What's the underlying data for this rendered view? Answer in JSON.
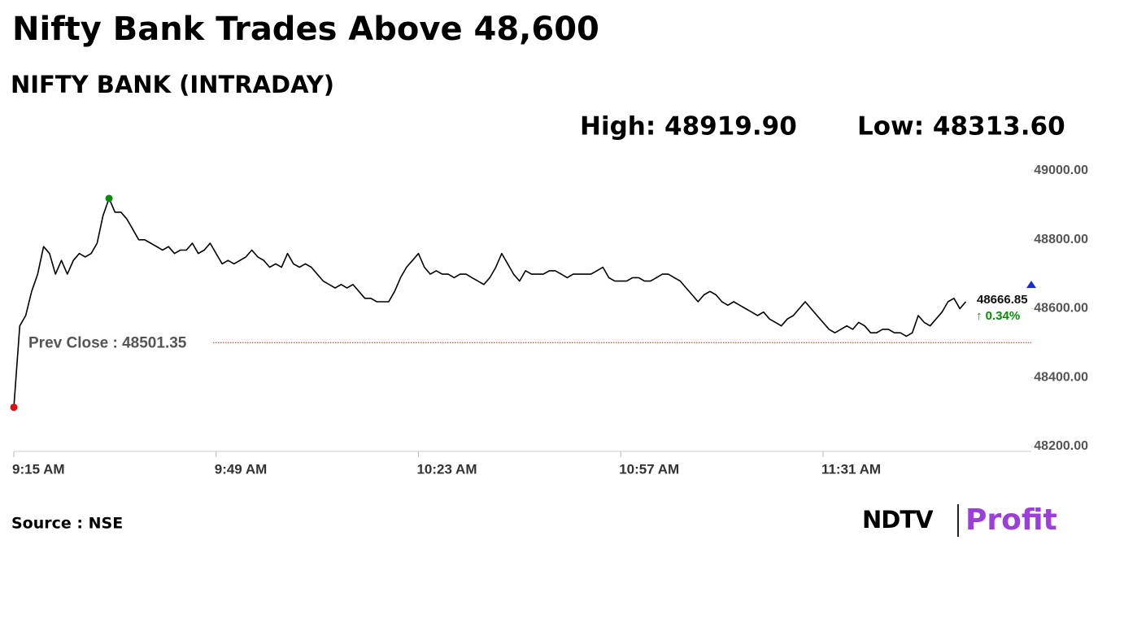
{
  "chart_data": {
    "type": "line",
    "title": "Nifty Bank Trades Above 48,600",
    "subtitle": "NIFTY BANK (INTRADAY)",
    "high_label": "High: 48919.90",
    "low_label": "Low: 48313.60",
    "prev_close": 48501.35,
    "prev_close_label": "Prev Close : 48501.35",
    "last_value": 48666.85,
    "change_label": "↑ 0.34%",
    "source": "Source : NSE",
    "logo": [
      "NDTV",
      "Profit"
    ],
    "xlim": [
      "9:15 AM",
      "12:06 PM"
    ],
    "xticks": [
      "9:15 AM",
      "9:49 AM",
      "10:23 AM",
      "10:57 AM",
      "11:31 AM"
    ],
    "ylim": [
      48200,
      49000
    ],
    "yticks": [
      {
        "value": 48200,
        "label": "48200.00"
      },
      {
        "value": 48400,
        "label": "48400.00"
      },
      {
        "value": 48600,
        "label": "48600.00"
      },
      {
        "value": 48800,
        "label": "48800.00"
      },
      {
        "value": 49000,
        "label": "49000.00"
      }
    ],
    "x": [
      "9:15 AM",
      "9:16 AM",
      "9:17 AM",
      "9:18 AM",
      "9:19 AM",
      "9:20 AM",
      "9:21 AM",
      "9:22 AM",
      "9:23 AM",
      "9:24 AM",
      "9:25 AM",
      "9:26 AM",
      "9:27 AM",
      "9:28 AM",
      "9:29 AM",
      "9:30 AM",
      "9:31 AM",
      "9:32 AM",
      "9:33 AM",
      "9:34 AM",
      "9:35 AM",
      "9:36 AM",
      "9:37 AM",
      "9:38 AM",
      "9:39 AM",
      "9:40 AM",
      "9:41 AM",
      "9:42 AM",
      "9:43 AM",
      "9:44 AM",
      "9:45 AM",
      "9:46 AM",
      "9:47 AM",
      "9:48 AM",
      "9:49 AM",
      "9:50 AM",
      "9:51 AM",
      "9:52 AM",
      "9:53 AM",
      "9:54 AM",
      "9:55 AM",
      "9:56 AM",
      "9:57 AM",
      "9:58 AM",
      "9:59 AM",
      "10:00 AM",
      "10:01 AM",
      "10:02 AM",
      "10:03 AM",
      "10:04 AM",
      "10:05 AM",
      "10:06 AM",
      "10:07 AM",
      "10:08 AM",
      "10:09 AM",
      "10:10 AM",
      "10:11 AM",
      "10:12 AM",
      "10:13 AM",
      "10:14 AM",
      "10:15 AM",
      "10:16 AM",
      "10:17 AM",
      "10:18 AM",
      "10:19 AM",
      "10:20 AM",
      "10:21 AM",
      "10:22 AM",
      "10:23 AM",
      "10:24 AM",
      "10:25 AM",
      "10:26 AM",
      "10:27 AM",
      "10:28 AM",
      "10:29 AM",
      "10:30 AM",
      "10:31 AM",
      "10:32 AM",
      "10:33 AM",
      "10:34 AM",
      "10:35 AM",
      "10:36 AM",
      "10:37 AM",
      "10:38 AM",
      "10:39 AM",
      "10:40 AM",
      "10:41 AM",
      "10:42 AM",
      "10:43 AM",
      "10:44 AM",
      "10:45 AM",
      "10:46 AM",
      "10:47 AM",
      "10:48 AM",
      "10:49 AM",
      "10:50 AM",
      "10:51 AM",
      "10:52 AM",
      "10:53 AM",
      "10:54 AM",
      "10:55 AM",
      "10:56 AM",
      "10:57 AM",
      "10:58 AM",
      "10:59 AM",
      "11:00 AM",
      "11:01 AM",
      "11:02 AM",
      "11:03 AM",
      "11:04 AM",
      "11:05 AM",
      "11:06 AM",
      "11:07 AM",
      "11:08 AM",
      "11:09 AM",
      "11:10 AM",
      "11:11 AM",
      "11:12 AM",
      "11:13 AM",
      "11:14 AM",
      "11:15 AM",
      "11:16 AM",
      "11:17 AM",
      "11:18 AM",
      "11:19 AM",
      "11:20 AM",
      "11:21 AM",
      "11:22 AM",
      "11:23 AM",
      "11:24 AM",
      "11:25 AM",
      "11:26 AM",
      "11:27 AM",
      "11:28 AM",
      "11:29 AM",
      "11:30 AM",
      "11:31 AM",
      "11:32 AM",
      "11:33 AM",
      "11:34 AM",
      "11:35 AM",
      "11:36 AM",
      "11:37 AM",
      "11:38 AM",
      "11:39 AM",
      "11:40 AM",
      "11:41 AM",
      "11:42 AM",
      "11:43 AM",
      "11:44 AM",
      "11:45 AM",
      "11:46 AM",
      "11:47 AM",
      "11:48 AM",
      "11:49 AM",
      "11:50 AM",
      "11:51 AM",
      "11:52 AM",
      "11:53 AM",
      "11:54 AM",
      "11:55 AM"
    ],
    "series": [
      {
        "name": "NIFTY BANK",
        "color": "#000000",
        "values": [
          48313.6,
          48550,
          48580,
          48650,
          48700,
          48780,
          48760,
          48700,
          48740,
          48700,
          48740,
          48760,
          48750,
          48760,
          48790,
          48870,
          48919.9,
          48880,
          48880,
          48860,
          48830,
          48800,
          48800,
          48790,
          48780,
          48770,
          48780,
          48760,
          48770,
          48770,
          48790,
          48760,
          48770,
          48790,
          48760,
          48730,
          48740,
          48730,
          48740,
          48750,
          48770,
          48750,
          48740,
          48720,
          48730,
          48720,
          48760,
          48730,
          48720,
          48730,
          48720,
          48700,
          48680,
          48670,
          48660,
          48670,
          48660,
          48670,
          48650,
          48630,
          48630,
          48620,
          48620,
          48620,
          48650,
          48690,
          48720,
          48740,
          48760,
          48720,
          48700,
          48710,
          48700,
          48700,
          48690,
          48700,
          48700,
          48690,
          48680,
          48670,
          48690,
          48720,
          48760,
          48730,
          48700,
          48680,
          48710,
          48700,
          48700,
          48700,
          48710,
          48710,
          48700,
          48690,
          48700,
          48700,
          48700,
          48700,
          48710,
          48720,
          48690,
          48680,
          48680,
          48680,
          48690,
          48690,
          48680,
          48680,
          48690,
          48700,
          48700,
          48690,
          48680,
          48660,
          48640,
          48620,
          48640,
          48650,
          48640,
          48620,
          48610,
          48620,
          48610,
          48600,
          48590,
          48580,
          48590,
          48570,
          48560,
          48550,
          48570,
          48580,
          48600,
          48620,
          48600,
          48580,
          48560,
          48540,
          48530,
          48540,
          48550,
          48540,
          48560,
          48550,
          48530,
          48530,
          48540,
          48540,
          48530,
          48530,
          48520,
          48530,
          48580,
          48560,
          48550,
          48570,
          48590,
          48620,
          48630,
          48600,
          48620
        ]
      }
    ],
    "high_color": "#0a8a0a",
    "low_color": "#e01010",
    "prev_close_color": "#d02020",
    "last_color": "#1a2ad0",
    "change_color": "#0a8a0a"
  }
}
